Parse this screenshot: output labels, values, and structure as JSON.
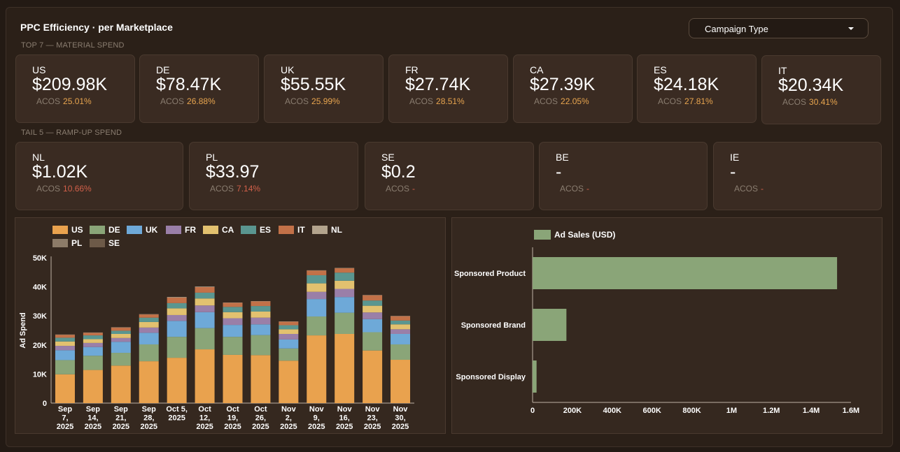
{
  "header": {
    "title": "PPC Efficiency · per Marketplace",
    "dropdown_label": "Campaign Type"
  },
  "top_section_label": "TOP 7 — MATERIAL SPEND",
  "tail_section_label": "TAIL 5 — RAMP-UP SPEND",
  "acos_label": "ACOS",
  "top_cards": [
    {
      "code": "US",
      "value": "$209.98K",
      "acos": "25.01%"
    },
    {
      "code": "DE",
      "value": "$78.47K",
      "acos": "26.88%"
    },
    {
      "code": "UK",
      "value": "$55.55K",
      "acos": "25.99%"
    },
    {
      "code": "FR",
      "value": "$27.74K",
      "acos": "28.51%"
    },
    {
      "code": "CA",
      "value": "$27.39K",
      "acos": "22.05%"
    },
    {
      "code": "ES",
      "value": "$24.18K",
      "acos": "27.81%"
    },
    {
      "code": "IT",
      "value": "$20.34K",
      "acos": "30.41%"
    }
  ],
  "tail_cards": [
    {
      "code": "NL",
      "value": "$1.02K",
      "acos": "10.66%"
    },
    {
      "code": "PL",
      "value": "$33.97",
      "acos": "7.14%"
    },
    {
      "code": "SE",
      "value": "$0.2",
      "acos": "-"
    },
    {
      "code": "BE",
      "value": "-",
      "acos": "-"
    },
    {
      "code": "IE",
      "value": "-",
      "acos": "-"
    }
  ],
  "colors": {
    "acos_orange": "#e8a54f",
    "acos_red": "#d2604a",
    "US": "#e9a24e",
    "DE": "#8aa578",
    "UK": "#6ea9d8",
    "FR": "#9a7fa8",
    "CA": "#e2c16f",
    "ES": "#5a9690",
    "IT": "#c27148",
    "NL": "#b3a48d",
    "PL": "#8c7b68",
    "SE": "#6d5a48",
    "bar_green": "#8aa578"
  },
  "chart_data": [
    {
      "type": "bar",
      "stacked": true,
      "ylabel": "Ad Spend",
      "ylim": [
        0,
        50000
      ],
      "yticks": [
        "0",
        "10K",
        "20K",
        "30K",
        "40K",
        "50K"
      ],
      "categories": [
        [
          "Sep",
          "7,",
          "2025"
        ],
        [
          "Sep",
          "14,",
          "2025"
        ],
        [
          "Sep",
          "21,",
          "2025"
        ],
        [
          "Sep",
          "28,",
          "2025"
        ],
        [
          "Oct 5,",
          "2025"
        ],
        [
          "Oct",
          "12,",
          "2025"
        ],
        [
          "Oct",
          "19,",
          "2025"
        ],
        [
          "Oct",
          "26,",
          "2025"
        ],
        [
          "Nov",
          "2,",
          "2025"
        ],
        [
          "Nov",
          "9,",
          "2025"
        ],
        [
          "Nov",
          "16,",
          "2025"
        ],
        [
          "Nov",
          "23,",
          "2025"
        ],
        [
          "Nov",
          "30,",
          "2025"
        ]
      ],
      "legend": [
        "US",
        "DE",
        "UK",
        "FR",
        "CA",
        "ES",
        "IT",
        "NL",
        "PL",
        "SE"
      ],
      "series": [
        {
          "name": "US",
          "values": [
            9900,
            11400,
            12900,
            14400,
            15600,
            18500,
            16600,
            16500,
            14600,
            23300,
            23800,
            18100,
            14900
          ]
        },
        {
          "name": "DE",
          "values": [
            4900,
            4900,
            4400,
            5800,
            7200,
            7300,
            6200,
            6900,
            4200,
            6500,
            7300,
            6300,
            5300
          ]
        },
        {
          "name": "UK",
          "values": [
            3400,
            3000,
            3800,
            4000,
            5500,
            5500,
            4100,
            3700,
            3100,
            6000,
            5400,
            4500,
            3600
          ]
        },
        {
          "name": "FR",
          "values": [
            1500,
            1400,
            1300,
            1800,
            2000,
            2300,
            2300,
            2300,
            1900,
            2500,
            2800,
            2300,
            1600
          ]
        },
        {
          "name": "CA",
          "values": [
            1500,
            1300,
            1400,
            1900,
            2300,
            2400,
            2100,
            2100,
            1600,
            2900,
            2800,
            2300,
            1700
          ]
        },
        {
          "name": "ES",
          "values": [
            1300,
            1300,
            1100,
            1500,
            1800,
            2000,
            1800,
            1900,
            1400,
            2800,
            2800,
            1800,
            1300
          ]
        },
        {
          "name": "IT",
          "values": [
            1000,
            900,
            1100,
            1100,
            1900,
            1900,
            1400,
            1600,
            1200,
            1600,
            1500,
            1800,
            1500
          ]
        },
        {
          "name": "NL",
          "values": [
            100,
            100,
            100,
            100,
            200,
            200,
            100,
            100,
            100,
            100,
            100,
            100,
            100
          ]
        },
        {
          "name": "PL",
          "values": [
            0,
            0,
            0,
            0,
            0,
            0,
            0,
            0,
            0,
            0,
            0,
            0,
            0
          ]
        },
        {
          "name": "SE",
          "values": [
            0,
            0,
            0,
            0,
            0,
            0,
            0,
            0,
            0,
            0,
            0,
            0,
            0
          ]
        }
      ]
    },
    {
      "type": "bar",
      "orientation": "horizontal",
      "legend": [
        "Ad Sales (USD)"
      ],
      "categories": [
        "Sponsored Product",
        "Sponsored Brand",
        "Sponsored Display"
      ],
      "series": [
        {
          "name": "Ad Sales (USD)",
          "values": [
            1530000,
            170000,
            20000
          ]
        }
      ],
      "xlim": [
        0,
        1600000
      ],
      "xticks": [
        "0",
        "200K",
        "400K",
        "600K",
        "800K",
        "1M",
        "1.2M",
        "1.4M",
        "1.6M"
      ]
    }
  ]
}
